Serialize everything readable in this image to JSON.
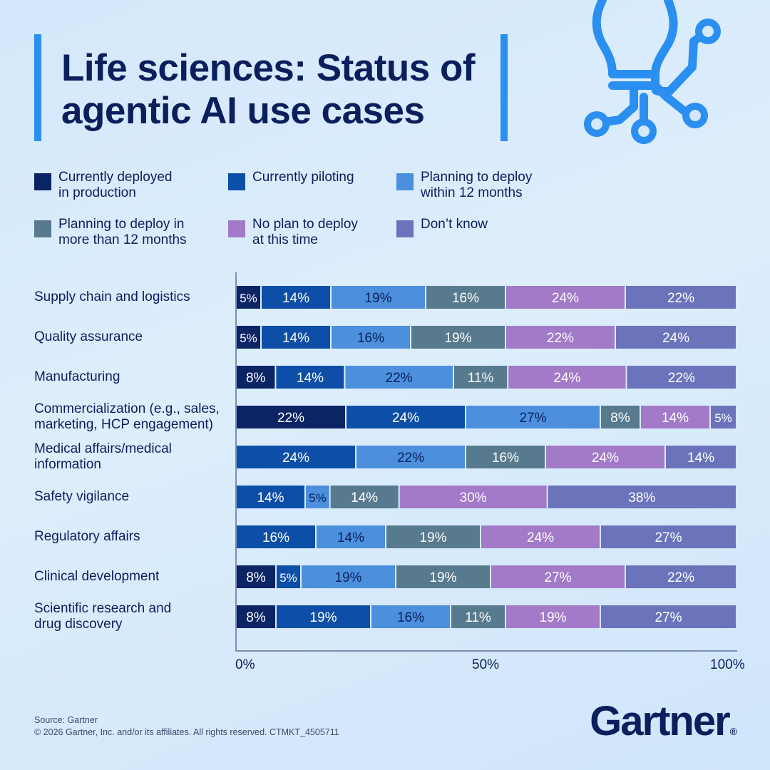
{
  "title": "Life sciences: Status of agentic AI use cases",
  "brand": "Gartner",
  "brand_mark": "®",
  "footer": {
    "source": "Source: Gartner",
    "copyright": "© 2026 Gartner, Inc. and/or its affiliates. All rights reserved. CTMKT_4505711"
  },
  "colors": {
    "deployed": "#0b2464",
    "piloting": "#0d4fa8",
    "plan12": "#4c8fdc",
    "plan_more": "#587a8e",
    "no_plan": "#a27ac8",
    "dont_know": "#6b74bb"
  },
  "chart_data": {
    "type": "bar",
    "orientation": "horizontal",
    "stacked": true,
    "xlim": [
      0,
      100
    ],
    "xticks": [
      "0%",
      "50%",
      "100%"
    ],
    "legend_position": "top",
    "categories": [
      "Supply chain and logistics",
      "Quality assurance",
      "Manufacturing",
      "Commercialization (e.g., sales,\nmarketing, HCP engagement)",
      "Medical affairs/medical\ninformation",
      "Safety vigilance",
      "Regulatory affairs",
      "Clinical development",
      "Scientific research and\ndrug discovery"
    ],
    "series": [
      {
        "name": "Currently deployed\nin production",
        "color": "#0b2464",
        "label_color": "#ffffff",
        "values": [
          5,
          5,
          8,
          22,
          0,
          0,
          0,
          8,
          8
        ]
      },
      {
        "name": "Currently piloting",
        "color": "#0d4fa8",
        "label_color": "#ffffff",
        "values": [
          14,
          14,
          14,
          24,
          24,
          14,
          16,
          5,
          19
        ]
      },
      {
        "name": "Planning to deploy\nwithin 12 months",
        "color": "#4c8fdc",
        "label_color": "#0a1f5c",
        "values": [
          19,
          16,
          22,
          27,
          22,
          5,
          14,
          19,
          16
        ]
      },
      {
        "name": "Planning to deploy in\nmore than 12 months",
        "color": "#587a8e",
        "label_color": "#ffffff",
        "values": [
          16,
          19,
          11,
          8,
          16,
          14,
          19,
          19,
          11
        ]
      },
      {
        "name": "No plan to deploy\nat this time",
        "color": "#a27ac8",
        "label_color": "#ffffff",
        "values": [
          24,
          22,
          24,
          14,
          24,
          30,
          24,
          27,
          19
        ]
      },
      {
        "name": "Don’t know",
        "color": "#6b74bb",
        "label_color": "#ffffff",
        "values": [
          22,
          24,
          22,
          5,
          14,
          38,
          27,
          22,
          27
        ]
      }
    ]
  }
}
